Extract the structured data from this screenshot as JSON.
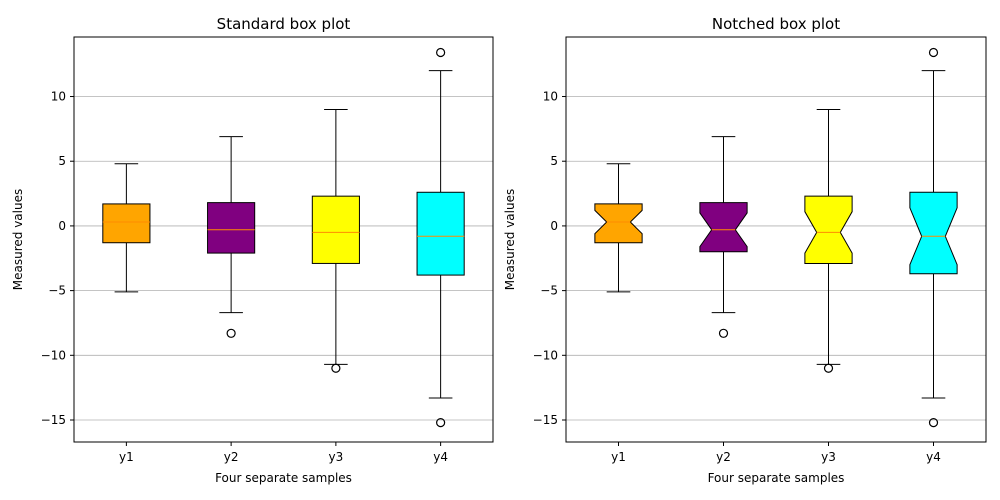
{
  "chart_data": [
    {
      "type": "boxplot",
      "variant": "standard",
      "title": "Standard box plot",
      "xlabel": "Four separate samples",
      "ylabel": "Measured values",
      "categories": [
        "y1",
        "y2",
        "y3",
        "y4"
      ],
      "ylim": [
        -16.7,
        14.6
      ],
      "yticks": [
        -15,
        -10,
        -5,
        0,
        5,
        10
      ],
      "ytick_labels": [
        "−15",
        "−10",
        "−5",
        "0",
        "5",
        "10"
      ],
      "grid": "y",
      "boxes": [
        {
          "name": "y1",
          "color": "#FFA500",
          "whisker_low": -5.1,
          "q1": -1.3,
          "median": 0.3,
          "q3": 1.7,
          "whisker_high": 4.8,
          "outliers": []
        },
        {
          "name": "y2",
          "color": "#800080",
          "whisker_low": -6.7,
          "q1": -2.1,
          "median": -0.3,
          "q3": 1.8,
          "whisker_high": 6.9,
          "outliers": [
            -8.3
          ]
        },
        {
          "name": "y3",
          "color": "#FFFF00",
          "whisker_low": -10.7,
          "q1": -2.9,
          "median": -0.5,
          "q3": 2.3,
          "whisker_high": 9.0,
          "outliers": [
            -11.0
          ]
        },
        {
          "name": "y4",
          "color": "#00FFFF",
          "whisker_low": -13.3,
          "q1": -3.8,
          "median": -0.8,
          "q3": 2.6,
          "whisker_high": 12.0,
          "outliers": [
            13.4,
            -15.2
          ]
        }
      ]
    },
    {
      "type": "boxplot",
      "variant": "notched",
      "title": "Notched box plot",
      "xlabel": "Four separate samples",
      "ylabel": "Measured values",
      "categories": [
        "y1",
        "y2",
        "y3",
        "y4"
      ],
      "ylim": [
        -16.7,
        14.6
      ],
      "yticks": [
        -15,
        -10,
        -5,
        0,
        5,
        10
      ],
      "ytick_labels": [
        "−15",
        "−10",
        "−5",
        "0",
        "5",
        "10"
      ],
      "grid": "y",
      "boxes": [
        {
          "name": "y1",
          "color": "#FFA500",
          "whisker_low": -5.1,
          "q1": -1.3,
          "median": 0.3,
          "q3": 1.7,
          "whisker_high": 4.8,
          "notch": 0.9,
          "outliers": []
        },
        {
          "name": "y2",
          "color": "#800080",
          "whisker_low": -6.7,
          "q1": -2.0,
          "median": -0.3,
          "q3": 1.8,
          "whisker_high": 6.9,
          "notch": 1.3,
          "outliers": [
            -8.3
          ]
        },
        {
          "name": "y3",
          "color": "#FFFF00",
          "whisker_low": -10.7,
          "q1": -2.9,
          "median": -0.5,
          "q3": 2.3,
          "whisker_high": 9.0,
          "notch": 1.6,
          "outliers": [
            -11.0
          ]
        },
        {
          "name": "y4",
          "color": "#00FFFF",
          "whisker_low": -13.3,
          "q1": -3.7,
          "median": -0.8,
          "q3": 2.6,
          "whisker_high": 12.0,
          "notch": 2.2,
          "outliers": [
            13.4,
            -15.2
          ]
        }
      ]
    }
  ]
}
